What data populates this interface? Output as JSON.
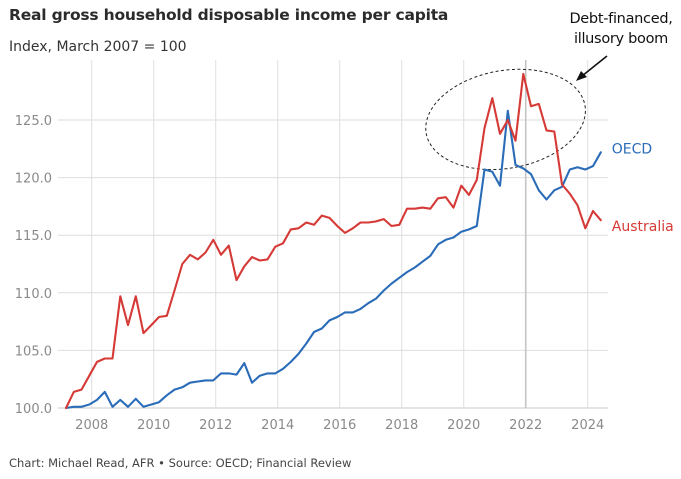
{
  "chart_data": {
    "type": "line",
    "title": "Real gross household disposable income per capita",
    "subtitle": "Index, March 2007 = 100",
    "xlabel": "",
    "ylabel": "",
    "x_start": "2007-Q1",
    "x_frequency": "quarterly",
    "xlim": [
      2007.17,
      2024.42
    ],
    "ylim": [
      100,
      128.5
    ],
    "x_ticks": [
      "2008",
      "2010",
      "2012",
      "2014",
      "2016",
      "2018",
      "2020",
      "2022",
      "2024"
    ],
    "x_tick_values": [
      2008,
      2010,
      2012,
      2014,
      2016,
      2018,
      2020,
      2022,
      2024
    ],
    "y_ticks": [
      "100.0",
      "105.0",
      "110.0",
      "115.0",
      "120.0",
      "125.0"
    ],
    "y_tick_values": [
      100,
      105,
      110,
      115,
      120,
      125
    ],
    "grid": true,
    "legend": "inline-right",
    "series": [
      {
        "name": "Australia",
        "color": "#d63a36",
        "values": [
          100.0,
          101.4,
          101.6,
          102.8,
          104.0,
          104.3,
          104.3,
          109.7,
          107.2,
          109.7,
          106.5,
          107.2,
          107.9,
          108.0,
          110.2,
          112.5,
          113.3,
          112.9,
          113.5,
          114.6,
          113.3,
          114.1,
          111.1,
          112.3,
          113.1,
          112.8,
          112.9,
          114.0,
          114.3,
          115.5,
          115.6,
          116.1,
          115.9,
          116.7,
          116.5,
          115.8,
          115.2,
          115.6,
          116.1,
          116.1,
          116.2,
          116.4,
          115.8,
          115.9,
          117.3,
          117.3,
          117.4,
          117.3,
          118.2,
          118.3,
          117.4,
          119.3,
          118.5,
          119.8,
          124.3,
          126.9,
          123.8,
          125.0,
          123.2,
          129.0,
          126.2,
          126.4,
          124.1,
          124.0,
          119.4,
          118.6,
          117.6,
          115.6,
          117.1,
          116.3
        ]
      },
      {
        "name": "OECD",
        "color": "#2a6cb8",
        "values": [
          100.0,
          100.1,
          100.1,
          100.3,
          100.7,
          101.4,
          100.1,
          100.7,
          100.1,
          100.8,
          100.1,
          100.3,
          100.5,
          101.1,
          101.6,
          101.8,
          102.2,
          102.3,
          102.4,
          102.4,
          103.0,
          103.0,
          102.9,
          103.9,
          102.2,
          102.8,
          103.0,
          103.0,
          103.4,
          104.0,
          104.7,
          105.6,
          106.6,
          106.9,
          107.6,
          107.9,
          108.3,
          108.3,
          108.6,
          109.1,
          109.5,
          110.2,
          110.8,
          111.3,
          111.8,
          112.2,
          112.7,
          113.2,
          114.2,
          114.6,
          114.8,
          115.3,
          115.5,
          115.8,
          120.7,
          120.5,
          119.3,
          125.8,
          121.1,
          120.8,
          120.3,
          118.9,
          118.1,
          118.9,
          119.2,
          120.7,
          120.9,
          120.7,
          121.0,
          122.2
        ]
      }
    ],
    "annotations": [
      {
        "text": "Debt-financed, illusory boom",
        "shape": "dashed-ellipse",
        "x_range": [
          2018.75,
          2023.95
        ],
        "y_range": [
          121.5,
          128.6
        ],
        "arrow": true
      }
    ]
  },
  "header": {
    "title": "Real gross household disposable income per capita",
    "subtitle": "Index, March 2007 = 100"
  },
  "annotation": {
    "line1": "Debt-financed,",
    "line2": "illusory boom"
  },
  "footer": {
    "credit": "Chart: Michael Read, AFR • Source: OECD; Financial Review"
  }
}
